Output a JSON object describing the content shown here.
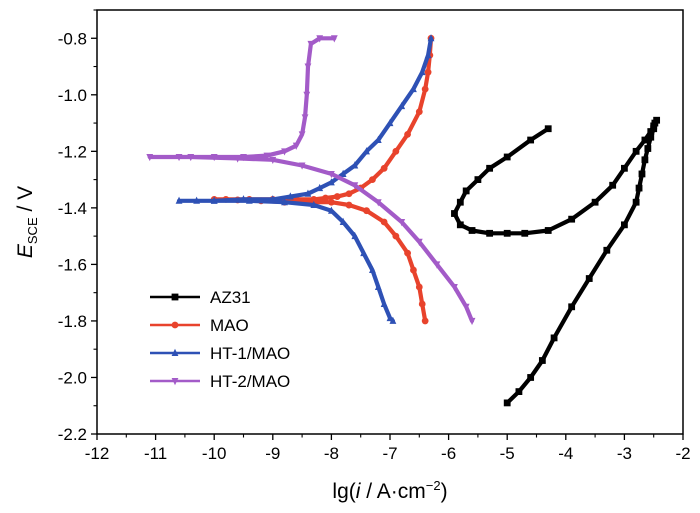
{
  "chart_data": {
    "type": "line",
    "xlabel": {
      "main": "lg(",
      "italic": "i",
      "mid": " / A·cm",
      "sup": "−2",
      "end": ")"
    },
    "ylabel": {
      "italic": "E",
      "sub": "SCE",
      "end": " / V"
    },
    "xlim": [
      -12,
      -2
    ],
    "ylim": [
      -2.2,
      -0.7
    ],
    "xticks": [
      -12,
      -11,
      -10,
      -9,
      -8,
      -7,
      -6,
      -5,
      -4,
      -3,
      -2
    ],
    "xtick_labels": [
      "-12",
      "-11",
      "-10",
      "-9",
      "-8",
      "-7",
      "-6",
      "-5",
      "-4",
      "-3",
      "-2"
    ],
    "yticks": [
      -2.2,
      -2.0,
      -1.8,
      -1.6,
      -1.4,
      -1.2,
      -1.0,
      -0.8
    ],
    "ytick_labels": [
      "-2.2",
      "-2.0",
      "-1.8",
      "-1.6",
      "-1.4",
      "-1.2",
      "-1.0",
      "-0.8"
    ],
    "grid": false,
    "legend_position": "bottom-left",
    "series": [
      {
        "name": "AZ31",
        "color": "#000000",
        "marker": "square",
        "x": [
          -4.3,
          -4.6,
          -5.0,
          -5.3,
          -5.5,
          -5.7,
          -5.8,
          -5.9,
          -5.8,
          -5.6,
          -5.3,
          -5.0,
          -4.7,
          -4.3,
          -3.9,
          -3.5,
          -3.2,
          -3.0,
          -2.8,
          -2.65,
          -2.55,
          -2.5,
          -2.45,
          -2.48,
          -2.5,
          -2.55,
          -2.6,
          -2.65,
          -2.7,
          -2.75,
          -2.8,
          -3.0,
          -3.3,
          -3.6,
          -3.9,
          -4.2,
          -4.4,
          -4.6,
          -4.8,
          -5.0
        ],
        "y": [
          -1.12,
          -1.16,
          -1.22,
          -1.26,
          -1.3,
          -1.34,
          -1.38,
          -1.42,
          -1.46,
          -1.48,
          -1.49,
          -1.49,
          -1.49,
          -1.48,
          -1.44,
          -1.38,
          -1.32,
          -1.26,
          -1.2,
          -1.16,
          -1.13,
          -1.11,
          -1.09,
          -1.1,
          -1.12,
          -1.15,
          -1.19,
          -1.23,
          -1.28,
          -1.33,
          -1.38,
          -1.46,
          -1.55,
          -1.65,
          -1.75,
          -1.86,
          -1.94,
          -2.0,
          -2.05,
          -2.09
        ]
      },
      {
        "name": "MAO",
        "color": "#e8432c",
        "marker": "circle",
        "x": [
          -6.3,
          -6.32,
          -6.35,
          -6.4,
          -6.5,
          -6.7,
          -6.9,
          -7.1,
          -7.3,
          -7.5,
          -7.7,
          -7.9,
          -8.1,
          -8.3,
          -8.6,
          -9.0,
          -9.4,
          -9.8,
          -10.0,
          -9.6,
          -9.2,
          -8.8,
          -8.4,
          -8.0,
          -7.7,
          -7.4,
          -7.1,
          -6.9,
          -6.7,
          -6.6,
          -6.5,
          -6.45,
          -6.4
        ],
        "y": [
          -0.8,
          -0.86,
          -0.92,
          -0.98,
          -1.06,
          -1.14,
          -1.2,
          -1.26,
          -1.3,
          -1.33,
          -1.35,
          -1.36,
          -1.365,
          -1.37,
          -1.37,
          -1.37,
          -1.37,
          -1.37,
          -1.37,
          -1.372,
          -1.375,
          -1.38,
          -1.38,
          -1.38,
          -1.39,
          -1.41,
          -1.45,
          -1.5,
          -1.56,
          -1.62,
          -1.68,
          -1.74,
          -1.8
        ]
      },
      {
        "name": "HT-1/MAO",
        "color": "#2e51b5",
        "marker": "triangle-up",
        "x": [
          -6.3,
          -6.35,
          -6.45,
          -6.6,
          -6.8,
          -7.0,
          -7.2,
          -7.4,
          -7.6,
          -7.8,
          -8.0,
          -8.2,
          -8.4,
          -8.7,
          -9.0,
          -9.5,
          -10.0,
          -10.3,
          -10.6,
          -10.0,
          -9.4,
          -8.8,
          -8.3,
          -8.0,
          -7.8,
          -7.6,
          -7.45,
          -7.3,
          -7.2,
          -7.1,
          -7.0,
          -6.95
        ],
        "y": [
          -0.8,
          -0.86,
          -0.92,
          -0.98,
          -1.04,
          -1.1,
          -1.16,
          -1.2,
          -1.25,
          -1.28,
          -1.31,
          -1.33,
          -1.35,
          -1.36,
          -1.37,
          -1.37,
          -1.375,
          -1.375,
          -1.375,
          -1.375,
          -1.375,
          -1.38,
          -1.39,
          -1.41,
          -1.45,
          -1.5,
          -1.56,
          -1.62,
          -1.68,
          -1.74,
          -1.79,
          -1.8
        ]
      },
      {
        "name": "HT-2/MAO",
        "color": "#a35bc8",
        "marker": "triangle-down",
        "x": [
          -7.95,
          -8.2,
          -8.35,
          -8.4,
          -8.42,
          -8.45,
          -8.5,
          -8.6,
          -8.8,
          -9.1,
          -9.5,
          -10.0,
          -10.6,
          -11.1,
          -10.4,
          -9.6,
          -9.0,
          -8.5,
          -8.0,
          -7.6,
          -7.2,
          -6.8,
          -6.5,
          -6.2,
          -5.9,
          -5.7,
          -5.6
        ],
        "y": [
          -0.8,
          -0.8,
          -0.82,
          -0.9,
          -1.0,
          -1.08,
          -1.14,
          -1.18,
          -1.2,
          -1.215,
          -1.22,
          -1.22,
          -1.22,
          -1.22,
          -1.22,
          -1.225,
          -1.23,
          -1.25,
          -1.28,
          -1.32,
          -1.38,
          -1.45,
          -1.52,
          -1.6,
          -1.68,
          -1.75,
          -1.8
        ]
      }
    ]
  }
}
